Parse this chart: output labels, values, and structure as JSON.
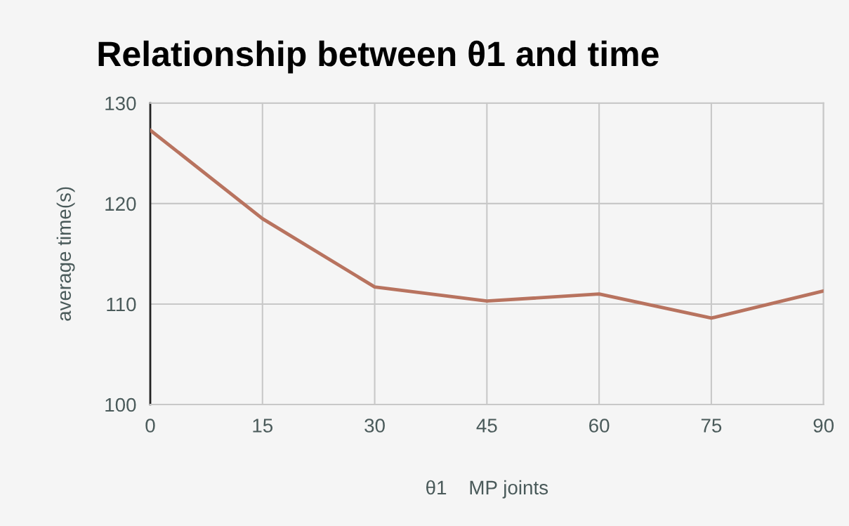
{
  "chart_data": {
    "type": "line",
    "title": "Relationship between θ1 and time",
    "xlabel": "θ1    MP joints",
    "ylabel": "average time(s)",
    "x": [
      0,
      15,
      30,
      45,
      60,
      75,
      90
    ],
    "series": [
      {
        "color": "#b8735f",
        "values": [
          127.3,
          118.5,
          111.7,
          110.3,
          111.0,
          108.6,
          111.3
        ]
      }
    ],
    "xlim": [
      0,
      90
    ],
    "xticks": [
      0,
      15,
      30,
      45,
      60,
      75,
      90
    ],
    "ylim": [
      100,
      130
    ],
    "yticks": [
      100,
      110,
      120,
      130
    ],
    "grid": true,
    "marker": "none",
    "line_style": "solid"
  }
}
